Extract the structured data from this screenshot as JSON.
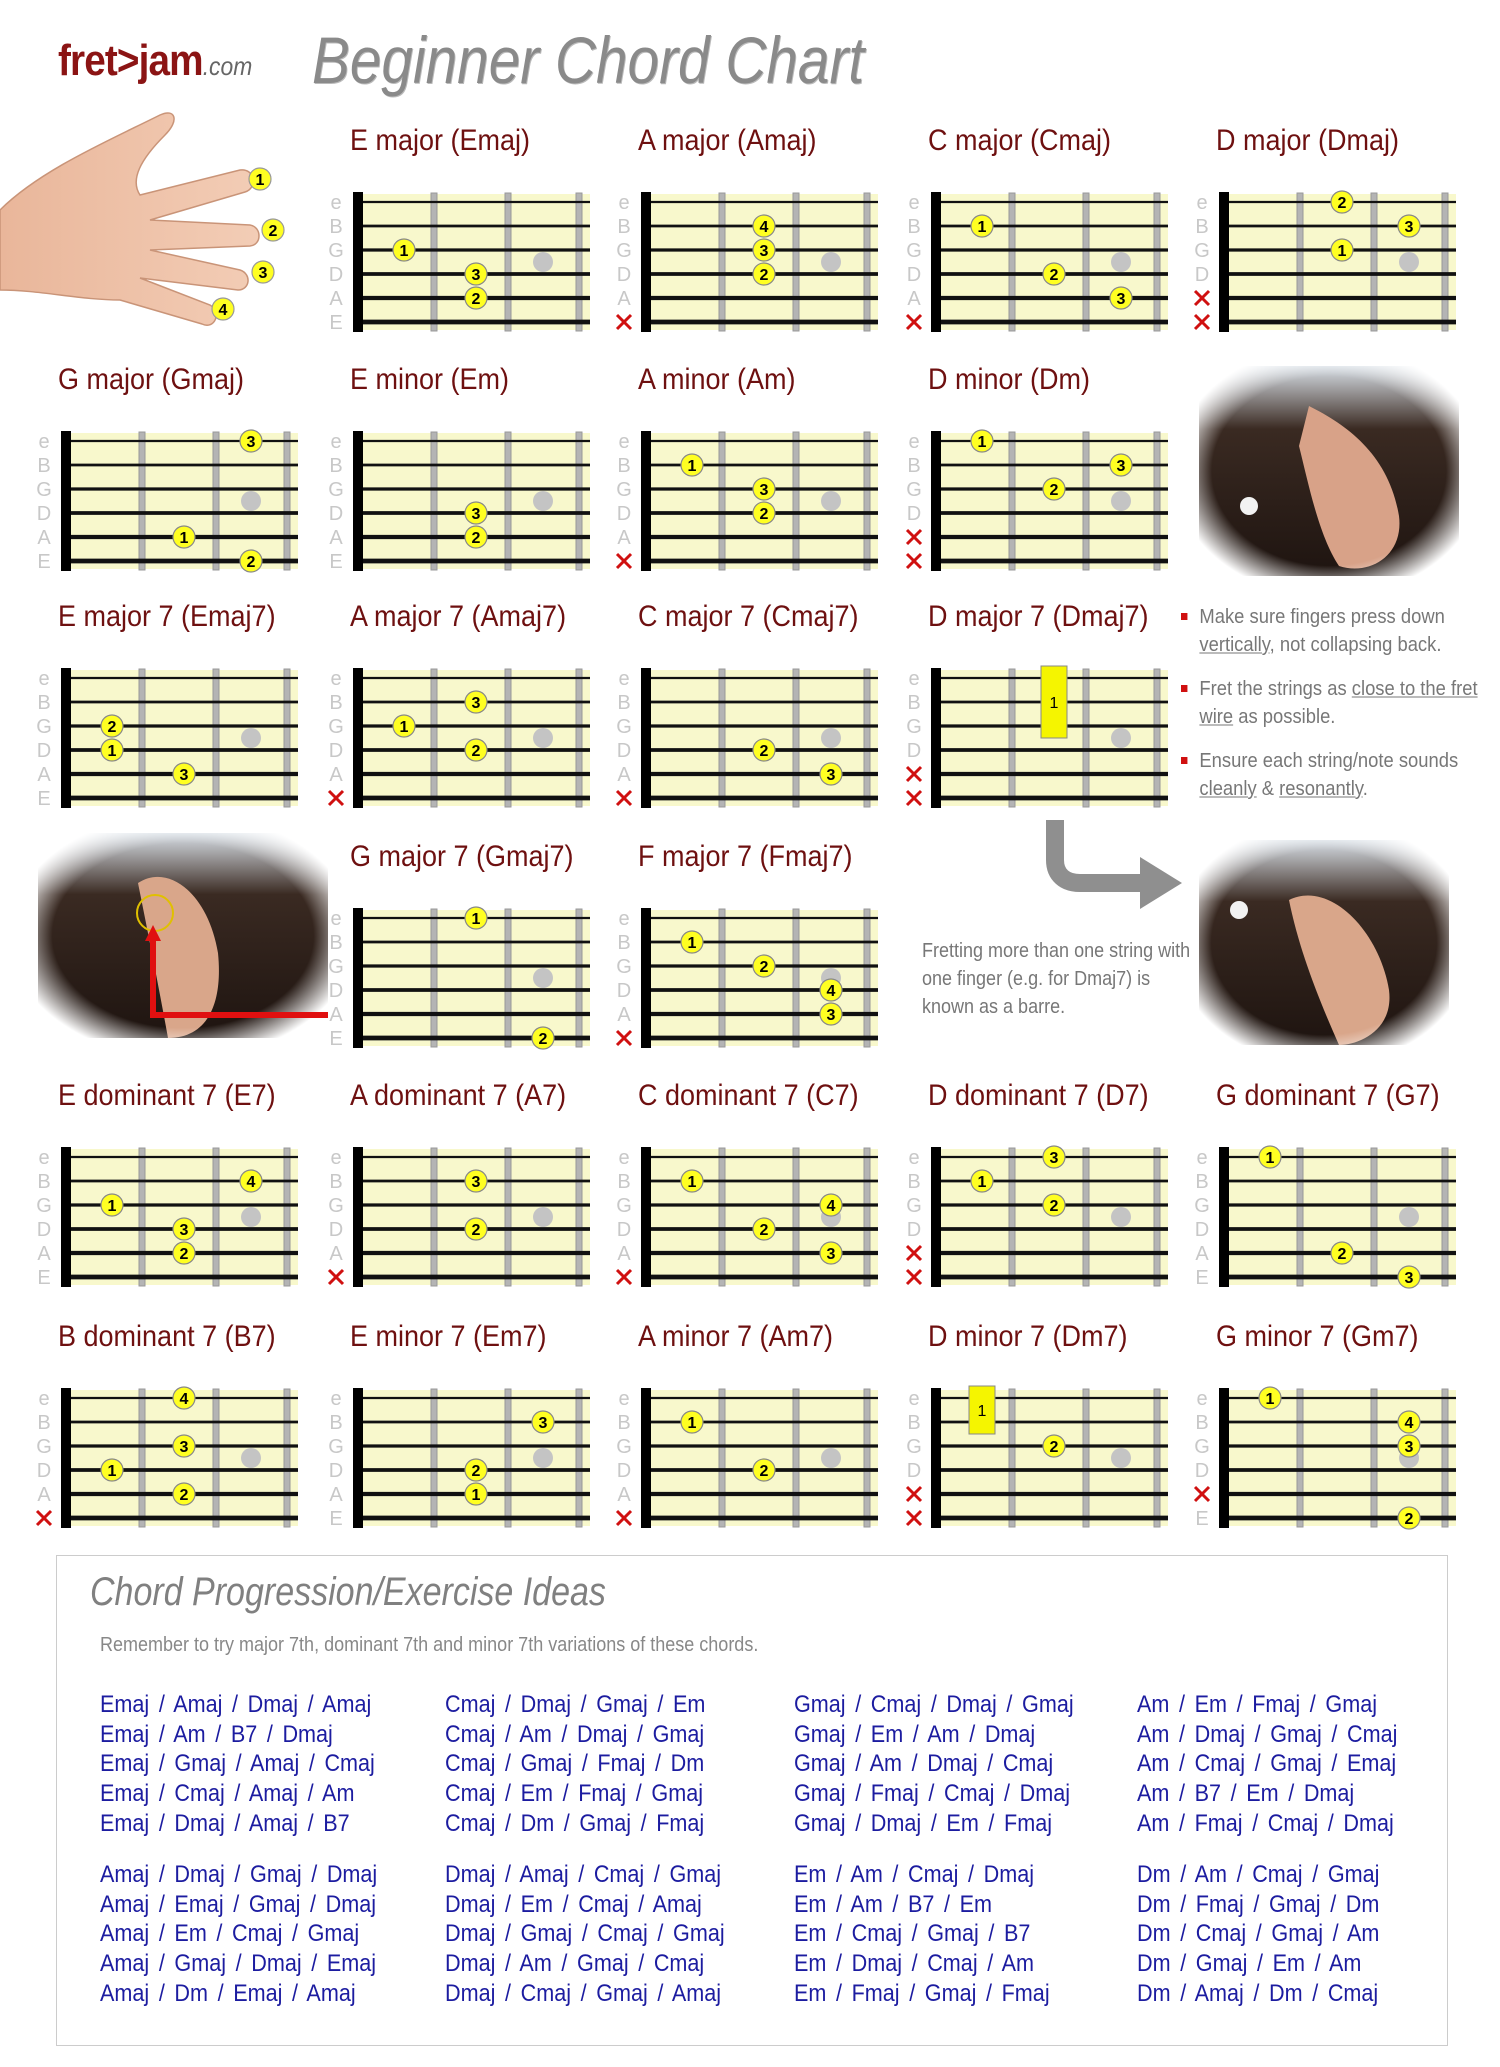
{
  "header": {
    "logo_main": "fret>jam",
    "logo_suffix": ".com",
    "title": "Beginner Chord Chart"
  },
  "string_names": [
    "e",
    "B",
    "G",
    "D",
    "A",
    "E"
  ],
  "hand_finger_numbers": [
    "1",
    "2",
    "3",
    "4"
  ],
  "colors": {
    "title": "#6e1010",
    "fretboard": "#f8f8cc",
    "finger": "#ffff22",
    "muted": "#d01010",
    "progression_text": "#1c1ca0"
  },
  "chords": [
    {
      "title": "E major (Emaj)",
      "muted": [],
      "fingers": [
        [
          "G",
          1,
          "1"
        ],
        [
          "D",
          2,
          "3"
        ],
        [
          "A",
          2,
          "2"
        ]
      ]
    },
    {
      "title": "A major (Amaj)",
      "muted": [
        "E"
      ],
      "fingers": [
        [
          "B",
          2,
          "4"
        ],
        [
          "G",
          2,
          "3"
        ],
        [
          "D",
          2,
          "2"
        ]
      ]
    },
    {
      "title": "C major (Cmaj)",
      "muted": [
        "E"
      ],
      "fingers": [
        [
          "B",
          1,
          "1"
        ],
        [
          "D",
          2,
          "2"
        ],
        [
          "A",
          3,
          "3"
        ]
      ]
    },
    {
      "title": "D major (Dmaj)",
      "muted": [
        "A",
        "E"
      ],
      "fingers": [
        [
          "e",
          2,
          "2"
        ],
        [
          "B",
          3,
          "3"
        ],
        [
          "G",
          2,
          "1"
        ]
      ]
    },
    {
      "title": "G major (Gmaj)",
      "muted": [],
      "fingers": [
        [
          "e",
          3,
          "3"
        ],
        [
          "A",
          2,
          "1"
        ],
        [
          "E",
          3,
          "2"
        ]
      ]
    },
    {
      "title": "E minor (Em)",
      "muted": [],
      "fingers": [
        [
          "D",
          2,
          "3"
        ],
        [
          "A",
          2,
          "2"
        ]
      ]
    },
    {
      "title": "A minor (Am)",
      "muted": [
        "E"
      ],
      "fingers": [
        [
          "B",
          1,
          "1"
        ],
        [
          "G",
          2,
          "3"
        ],
        [
          "D",
          2,
          "2"
        ]
      ]
    },
    {
      "title": "D minor (Dm)",
      "muted": [
        "A",
        "E"
      ],
      "fingers": [
        [
          "e",
          1,
          "1"
        ],
        [
          "B",
          3,
          "3"
        ],
        [
          "G",
          2,
          "2"
        ]
      ]
    },
    {
      "title": "E major 7 (Emaj7)",
      "muted": [],
      "fingers": [
        [
          "G",
          1,
          "2"
        ],
        [
          "D",
          1,
          "1"
        ],
        [
          "A",
          2,
          "3"
        ]
      ]
    },
    {
      "title": "A major 7 (Amaj7)",
      "muted": [
        "E"
      ],
      "fingers": [
        [
          "B",
          2,
          "3"
        ],
        [
          "G",
          1,
          "1"
        ],
        [
          "D",
          2,
          "2"
        ]
      ]
    },
    {
      "title": "C major 7 (Cmaj7)",
      "muted": [
        "E"
      ],
      "fingers": [
        [
          "D",
          2,
          "2"
        ],
        [
          "A",
          3,
          "3"
        ]
      ]
    },
    {
      "title": "D major 7 (Dmaj7)",
      "muted": [
        "A",
        "E"
      ],
      "fingers": [],
      "barre": {
        "fret": 2,
        "from": "e",
        "to": "G",
        "finger": "1"
      }
    },
    {
      "title": "G major 7 (Gmaj7)",
      "muted": [],
      "fingers": [
        [
          "e",
          2,
          "1"
        ],
        [
          "E",
          3,
          "2"
        ]
      ]
    },
    {
      "title": "F major 7 (Fmaj7)",
      "muted": [
        "E"
      ],
      "fingers": [
        [
          "B",
          1,
          "1"
        ],
        [
          "G",
          2,
          "2"
        ],
        [
          "D",
          3,
          "4"
        ],
        [
          "A",
          3,
          "3"
        ]
      ]
    },
    {
      "title": "E dominant 7 (E7)",
      "muted": [],
      "fingers": [
        [
          "B",
          3,
          "4"
        ],
        [
          "G",
          1,
          "1"
        ],
        [
          "D",
          2,
          "3"
        ],
        [
          "A",
          2,
          "2"
        ]
      ]
    },
    {
      "title": "A dominant 7 (A7)",
      "muted": [
        "E"
      ],
      "fingers": [
        [
          "B",
          2,
          "3"
        ],
        [
          "D",
          2,
          "2"
        ]
      ]
    },
    {
      "title": "C dominant 7 (C7)",
      "muted": [
        "E"
      ],
      "fingers": [
        [
          "B",
          1,
          "1"
        ],
        [
          "G",
          3,
          "4"
        ],
        [
          "D",
          2,
          "2"
        ],
        [
          "A",
          3,
          "3"
        ]
      ]
    },
    {
      "title": "D dominant 7 (D7)",
      "muted": [
        "A",
        "E"
      ],
      "fingers": [
        [
          "e",
          2,
          "3"
        ],
        [
          "B",
          1,
          "1"
        ],
        [
          "G",
          2,
          "2"
        ]
      ]
    },
    {
      "title": "G dominant 7 (G7)",
      "muted": [],
      "fingers": [
        [
          "e",
          1,
          "1"
        ],
        [
          "A",
          2,
          "2"
        ],
        [
          "E",
          3,
          "3"
        ]
      ]
    },
    {
      "title": "B dominant 7 (B7)",
      "muted": [
        "E"
      ],
      "fingers": [
        [
          "e",
          2,
          "4"
        ],
        [
          "G",
          2,
          "3"
        ],
        [
          "D",
          1,
          "1"
        ],
        [
          "A",
          2,
          "2"
        ]
      ]
    },
    {
      "title": "E minor 7 (Em7)",
      "muted": [],
      "fingers": [
        [
          "B",
          3,
          "3"
        ],
        [
          "D",
          2,
          "2"
        ],
        [
          "A",
          2,
          "1"
        ]
      ]
    },
    {
      "title": "A minor 7 (Am7)",
      "muted": [
        "E"
      ],
      "fingers": [
        [
          "B",
          1,
          "1"
        ],
        [
          "D",
          2,
          "2"
        ]
      ]
    },
    {
      "title": "D minor 7 (Dm7)",
      "muted": [
        "A",
        "E"
      ],
      "fingers": [
        [
          "G",
          2,
          "2"
        ]
      ],
      "barre": {
        "fret": 1,
        "from": "e",
        "to": "B",
        "finger": "1"
      }
    },
    {
      "title": "G minor 7 (Gm7)",
      "muted": [
        "A"
      ],
      "fingers": [
        [
          "e",
          1,
          "1"
        ],
        [
          "B",
          3,
          "4"
        ],
        [
          "G",
          3,
          "3"
        ],
        [
          "E",
          3,
          "2"
        ]
      ]
    }
  ],
  "tips": [
    [
      {
        "t": "Make sure fingers press down "
      },
      {
        "t": "vertically",
        "u": true
      },
      {
        "t": ", not collapsing back."
      }
    ],
    [
      {
        "t": "Fret the strings as "
      },
      {
        "t": "close to the fret wire",
        "u": true
      },
      {
        "t": " as possible."
      }
    ],
    [
      {
        "t": "Ensure each string/note sounds "
      },
      {
        "t": "cleanly",
        "u": true
      },
      {
        "t": " & "
      },
      {
        "t": "resonantly",
        "u": true
      },
      {
        "t": "."
      }
    ]
  ],
  "barre_note": "Fretting more than one string with one finger (e.g. for Dmaj7) is known as a barre.",
  "progressions": {
    "title": "Chord Progression/Exercise Ideas",
    "subtitle": "Remember to try major 7th, dominant 7th and minor 7th variations of these chords.",
    "groups": [
      [
        [
          "Emaj / Amaj / Dmaj / Amaj",
          "Emaj / Am / B7 / Dmaj",
          "Emaj / Gmaj / Amaj / Cmaj",
          "Emaj / Cmaj / Amaj / Am",
          "Emaj / Dmaj / Amaj / B7"
        ],
        [
          "Cmaj / Dmaj / Gmaj / Em",
          "Cmaj / Am / Dmaj / Gmaj",
          "Cmaj / Gmaj / Fmaj / Dm",
          "Cmaj / Em / Fmaj / Gmaj",
          "Cmaj / Dm / Gmaj / Fmaj"
        ],
        [
          "Gmaj / Cmaj / Dmaj / Gmaj",
          "Gmaj / Em / Am / Dmaj",
          "Gmaj / Am / Dmaj / Cmaj",
          "Gmaj / Fmaj / Cmaj / Dmaj",
          "Gmaj / Dmaj / Em / Fmaj"
        ],
        [
          "Am / Em / Fmaj / Gmaj",
          "Am / Dmaj / Gmaj / Cmaj",
          "Am / Cmaj / Gmaj / Emaj",
          "Am / B7 / Em / Dmaj",
          "Am / Fmaj / Cmaj / Dmaj"
        ]
      ],
      [
        [
          "Amaj / Dmaj / Gmaj / Dmaj",
          "Amaj / Emaj / Gmaj / Dmaj",
          "Amaj / Em / Cmaj / Gmaj",
          "Amaj / Gmaj / Dmaj / Emaj",
          "Amaj / Dm / Emaj / Amaj"
        ],
        [
          "Dmaj / Amaj / Cmaj / Gmaj",
          "Dmaj / Em / Cmaj / Amaj",
          "Dmaj / Gmaj / Cmaj / Gmaj",
          "Dmaj / Am / Gmaj / Cmaj",
          "Dmaj / Cmaj / Gmaj / Amaj"
        ],
        [
          "Em / Am / Cmaj / Dmaj",
          "Em / Am / B7 / Em",
          "Em / Cmaj / Gmaj / B7",
          "Em / Dmaj / Cmaj / Am",
          "Em / Fmaj / Gmaj / Fmaj"
        ],
        [
          "Dm / Am / Cmaj / Gmaj",
          "Dm / Fmaj / Gmaj / Dm",
          "Dm / Cmaj / Gmaj / Am",
          "Dm / Gmaj / Em / Am",
          "Dm / Amaj / Dm / Cmaj"
        ]
      ]
    ]
  }
}
